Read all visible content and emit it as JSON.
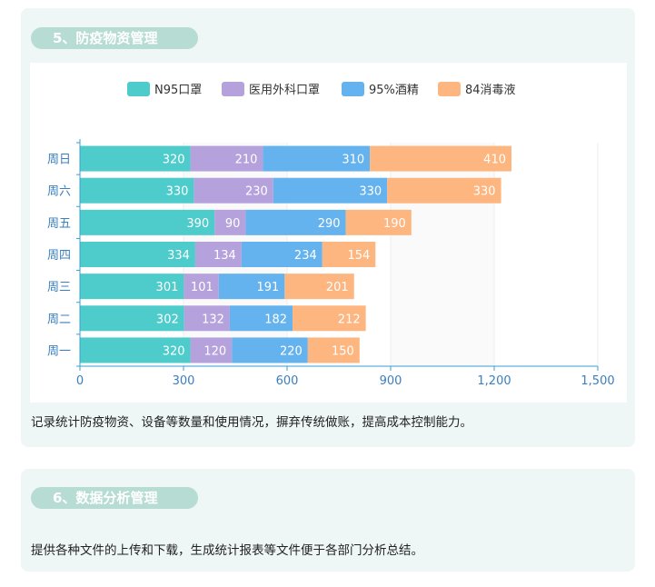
{
  "sections": [
    {
      "title": "5、防疫物资管理",
      "description": "记录统计防疫物资、设备等数量和使用情况，摒弃传统做账，提高成本控制能力。"
    },
    {
      "title": "6、数据分析管理",
      "description": "提供各种文件的上传和下载，生成统计报表等文件便于各部门分析总结。"
    }
  ],
  "chart_data": {
    "type": "bar",
    "orientation": "horizontal",
    "stacked": true,
    "categories": [
      "周一",
      "周二",
      "周三",
      "周四",
      "周五",
      "周六",
      "周日"
    ],
    "series": [
      {
        "name": "N95口罩",
        "color": "#4ecbcb",
        "values": [
          320,
          302,
          301,
          334,
          390,
          330,
          320
        ]
      },
      {
        "name": "医用外科口罩",
        "color": "#b5a2dc",
        "values": [
          120,
          132,
          101,
          134,
          90,
          230,
          210
        ]
      },
      {
        "name": "95%酒精",
        "color": "#64b2ee",
        "values": [
          220,
          182,
          191,
          234,
          290,
          330,
          310
        ]
      },
      {
        "name": "84消毒液",
        "color": "#fdb680",
        "values": [
          150,
          212,
          201,
          154,
          190,
          330,
          410
        ]
      }
    ],
    "x_ticks": [
      "0",
      "300",
      "600",
      "900",
      "1,200",
      "1,500"
    ],
    "xlim": [
      0,
      1500
    ],
    "legend_position": "top",
    "data_labels": true
  }
}
